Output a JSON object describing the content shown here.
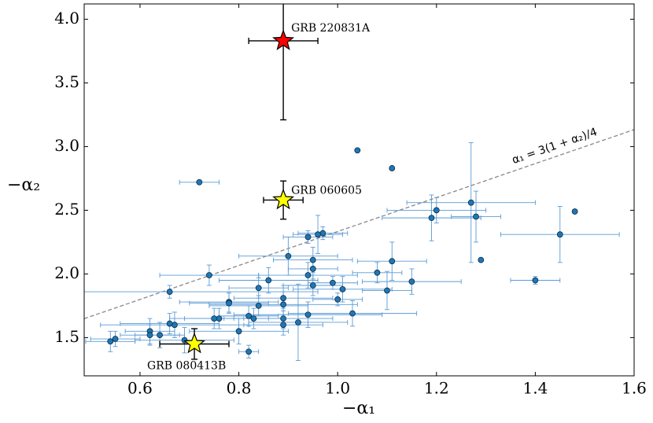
{
  "chart_data": {
    "type": "scatter",
    "xlabel": "−α₁",
    "ylabel": "−α₂",
    "xlim": [
      0.487,
      1.6
    ],
    "ylim": [
      1.2,
      4.12
    ],
    "xticks": [
      0.6,
      0.8,
      {
        "value": 1,
        "label": "1.0"
      },
      1.2,
      1.4,
      1.6
    ],
    "yticks": [
      1.5,
      {
        "value": 2,
        "label": "2.0"
      },
      2.5,
      {
        "value": 3,
        "label": "3.0"
      },
      3.5,
      {
        "value": 4,
        "label": "4.0"
      }
    ],
    "series": [
      {
        "color": "#1f77b4",
        "errcolor": "#5b9bd5",
        "x": [
          0.72,
          1.04,
          1.11,
          1.48,
          1.45,
          1.4,
          1.29,
          1.28,
          1.27,
          1.2,
          1.19,
          1.15,
          1.11,
          1.1,
          1.08,
          1.03,
          1.0,
          1.01,
          0.99,
          0.97,
          0.96,
          0.94,
          0.95,
          0.95,
          0.94,
          0.9,
          0.89,
          0.89,
          0.89,
          0.89,
          0.92,
          0.94,
          0.95,
          0.86,
          0.84,
          0.84,
          0.83,
          0.82,
          0.8,
          0.82,
          0.78,
          0.78,
          0.76,
          0.75,
          0.74,
          0.69,
          0.67,
          0.66,
          0.66,
          0.64,
          0.62,
          0.62,
          0.55,
          0.54
        ],
        "y": [
          2.72,
          2.97,
          2.83,
          2.49,
          2.31,
          1.95,
          2.11,
          2.45,
          2.56,
          2.5,
          2.44,
          1.94,
          2.1,
          1.87,
          2.01,
          1.69,
          1.8,
          1.88,
          1.93,
          2.32,
          2.31,
          2.29,
          2.11,
          2.04,
          1.99,
          2.14,
          1.81,
          1.76,
          1.65,
          1.6,
          1.62,
          1.68,
          1.91,
          1.95,
          1.89,
          1.75,
          1.65,
          1.67,
          1.55,
          1.39,
          1.78,
          1.77,
          1.65,
          1.65,
          1.99,
          1.48,
          1.6,
          1.61,
          1.86,
          1.52,
          1.55,
          1.52,
          1.49,
          1.47
        ],
        "xerr": [
          0.04,
          0,
          0,
          0,
          0.12,
          0.05,
          0,
          0.05,
          0.13,
          0.1,
          0.1,
          0.1,
          0.07,
          0.05,
          0.05,
          0.13,
          0.05,
          0.1,
          0.05,
          0.05,
          0.05,
          0.05,
          0.08,
          0.05,
          0.1,
          0.1,
          0.1,
          0.15,
          0.1,
          0.08,
          0.1,
          0.15,
          0.06,
          0.1,
          0.06,
          0.1,
          0.06,
          0.06,
          0.1,
          0.02,
          0.1,
          0.08,
          0.1,
          0.06,
          0.1,
          0.1,
          0.15,
          0.1,
          0.3,
          0.05,
          0.05,
          0.06,
          0.05,
          0.05
        ],
        "yerr": [
          0,
          0,
          0,
          0,
          0.22,
          0.03,
          0,
          0.2,
          0.47,
          0.1,
          0.18,
          0.1,
          0.15,
          0.15,
          0.08,
          0.1,
          0.05,
          0.1,
          0.05,
          0.05,
          0.15,
          0.05,
          0.1,
          0.08,
          0.1,
          0.15,
          0.1,
          0.1,
          0.08,
          0.08,
          0.3,
          0.1,
          0.08,
          0.1,
          0.08,
          0.08,
          0.08,
          0.08,
          0.1,
          0.05,
          0.08,
          0.08,
          0.08,
          0.08,
          0.08,
          0.1,
          0.1,
          0.08,
          0.05,
          0.1,
          0.1,
          0.08,
          0.06,
          0.08
        ]
      }
    ],
    "highlights": [
      {
        "label": "GRB 220831A",
        "color": "#ff0000",
        "x": 0.89,
        "y": 3.83,
        "xerr": 0.07,
        "yerr": 0.62
      },
      {
        "label": "GRB 060605",
        "color": "#ffff00",
        "x": 0.89,
        "y": 2.58,
        "xerr": 0.04,
        "yerr": 0.15
      },
      {
        "label": "GRB 080413B",
        "color": "#ffff00",
        "x": 0.71,
        "y": 1.45,
        "xerr": 0.07,
        "yerr": 0.12
      }
    ],
    "reference_line": {
      "label": "α₁ = 3(1 + α₂)/4",
      "color": "#888888",
      "x": [
        0.487,
        1.6
      ],
      "y": [
        1.649,
        3.133
      ]
    }
  }
}
